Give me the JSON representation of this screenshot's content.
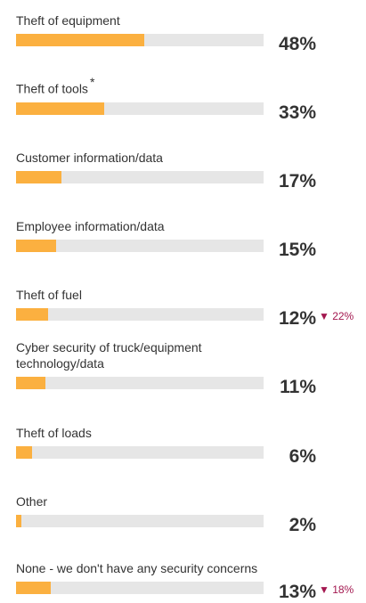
{
  "chart_data": {
    "type": "bar",
    "categories": [
      "Theft of equipment",
      "Theft of tools",
      "Customer information/data",
      "Employee information/data",
      "Theft of fuel",
      "Cyber security of truck/equipment technology/data",
      "Theft of loads",
      "Other",
      "None - we don't have any security concerns"
    ],
    "values": [
      48,
      33,
      17,
      15,
      12,
      11,
      6,
      2,
      13
    ],
    "value_labels": [
      "48%",
      "33%",
      "17%",
      "15%",
      "12%",
      "11%",
      "6%",
      "2%",
      "13%"
    ],
    "footnote_marks": [
      null,
      "*",
      null,
      null,
      null,
      null,
      null,
      null,
      null
    ],
    "change_labels": [
      null,
      null,
      null,
      null,
      "▼ 22%",
      null,
      null,
      null,
      "▼ 18%"
    ],
    "xlim": [
      0,
      100
    ],
    "color": "#fbb040",
    "track_color": "#e6e6e6",
    "change_color": "#a3174f"
  }
}
